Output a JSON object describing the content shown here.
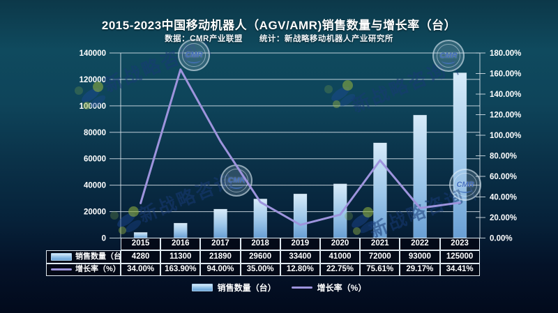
{
  "title": "2015-2023中国移动机器人（AGV/AMR)销售数量与增长率（台）",
  "subtitle": "数据：CMR产业联盟　　统计：新战略移动机器人产业研究所",
  "watermark": {
    "text": "新战略咨询",
    "separator": "|",
    "badge_text": "CMR"
  },
  "colors": {
    "bar_top": "#d7ebf9",
    "bar_mid": "#9cc6e9",
    "bar_bottom": "#699fd4",
    "line": "#9e94dd",
    "grid": "#d4dee4",
    "axis_text": "#ffffff"
  },
  "chart_data": {
    "type": "bar",
    "categories": [
      "2015",
      "2016",
      "2017",
      "2018",
      "2019",
      "2020",
      "2021",
      "2022",
      "2023"
    ],
    "series": [
      {
        "name": "销售数量（台）",
        "type": "bar",
        "axis": "left",
        "values": [
          4280,
          11300,
          21890,
          29600,
          33400,
          41000,
          72000,
          93000,
          125000
        ]
      },
      {
        "name": "增长率（%）",
        "type": "line",
        "axis": "right",
        "values": [
          34.0,
          163.9,
          94.0,
          35.0,
          12.8,
          22.75,
          75.61,
          29.17,
          34.41
        ]
      }
    ],
    "title": "2015-2023中国移动机器人（AGV/AMR)销售数量与增长率（台）",
    "xlabel": "",
    "ylabel": "",
    "left_axis": {
      "min": 0,
      "max": 140000,
      "ticks": [
        "0",
        "20000",
        "40000",
        "60000",
        "80000",
        "100000",
        "120000",
        "140000"
      ]
    },
    "right_axis": {
      "min": 0,
      "max": 180,
      "ticks": [
        "0.00%",
        "20.00%",
        "40.00%",
        "60.00%",
        "80.00%",
        "100.00%",
        "120.00%",
        "140.00%",
        "160.00%",
        "180.00%"
      ]
    },
    "grid": true,
    "legend_position": "bottom"
  },
  "table": {
    "row_headers": [
      "销售数量（台）",
      "增长率（%）"
    ],
    "years": [
      "2015",
      "2016",
      "2017",
      "2018",
      "2019",
      "2020",
      "2021",
      "2022",
      "2023"
    ],
    "sales": [
      "4280",
      "11300",
      "21890",
      "29600",
      "33400",
      "41000",
      "72000",
      "93000",
      "125000"
    ],
    "growth": [
      "34.00%",
      "163.90%",
      "94.00%",
      "35.00%",
      "12.80%",
      "22.75%",
      "75.61%",
      "29.17%",
      "34.41%"
    ]
  },
  "legend": {
    "bar_label": "销售数量（台）",
    "line_label": "增长率（%）"
  }
}
